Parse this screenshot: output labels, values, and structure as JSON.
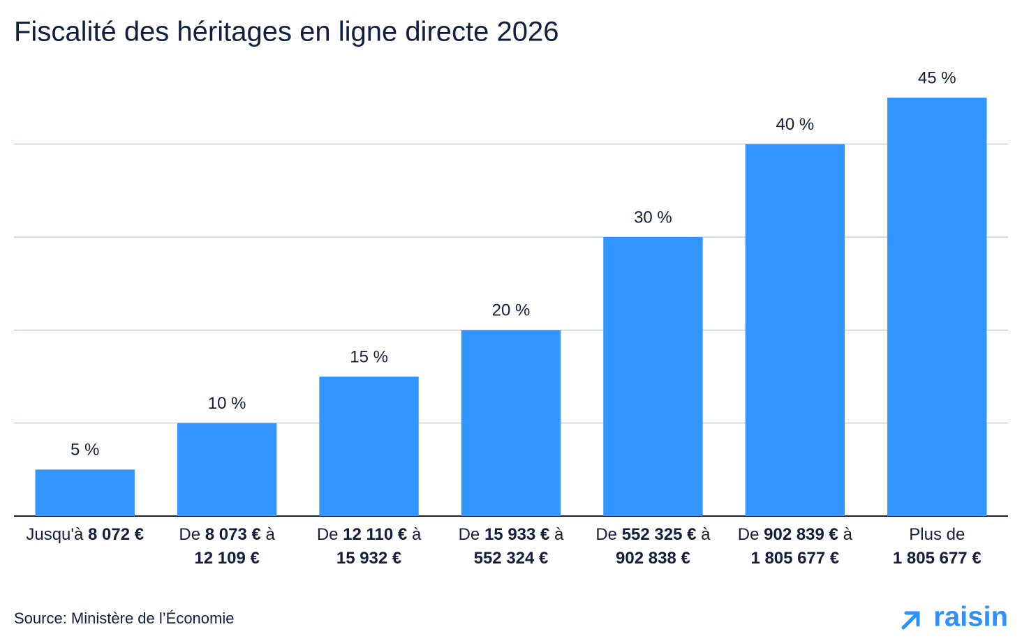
{
  "chart_data": {
    "type": "bar",
    "title": "Fiscalité des héritages en ligne directe 2026",
    "categories": [
      "Jusqu'à 8 072 €",
      "De 8 073 € à 12 109 €",
      "De 12 110 € à 15 932 €",
      "De 15 933 € à 552 324 €",
      "De 552 325 € à 902 838 €",
      "De 902 839 € à 1 805 677 €",
      "Plus de 1 805 677 €"
    ],
    "values": [
      5,
      10,
      15,
      20,
      30,
      40,
      45
    ],
    "value_labels": [
      "5 %",
      "10 %",
      "15 %",
      "20 %",
      "30 %",
      "40 %",
      "45 %"
    ],
    "color": "#3395ff",
    "ylim": [
      0,
      45
    ],
    "yticks": [
      0,
      10,
      20,
      30,
      40
    ],
    "grid": true,
    "source": "Source: Ministère de l’Économie",
    "logo": "raisin"
  }
}
